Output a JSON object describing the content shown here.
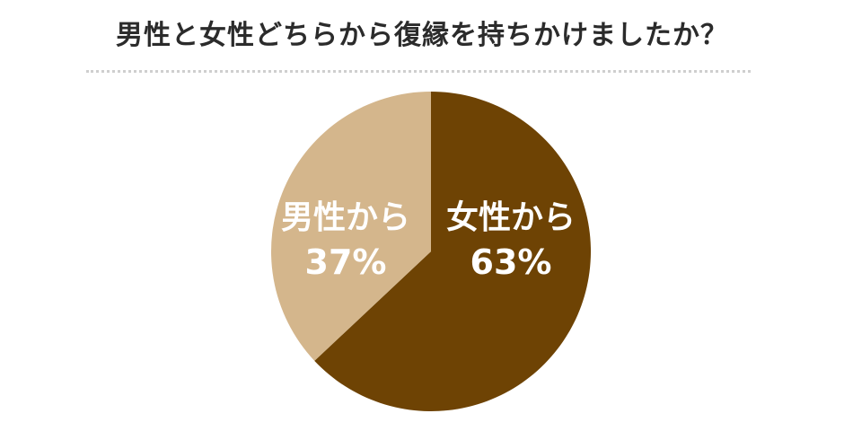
{
  "chart_data": {
    "type": "pie",
    "title": "男性と女性どちらから復縁を持ちかけましたか？",
    "slices": [
      {
        "label": "女性から",
        "value": 63,
        "value_text": "63%",
        "color": "#6e4304"
      },
      {
        "label": "男性から",
        "value": 37,
        "value_text": "37%",
        "color": "#d4b68c"
      }
    ],
    "start": "12 o'clock",
    "direction": "clockwise",
    "legend": "none"
  }
}
